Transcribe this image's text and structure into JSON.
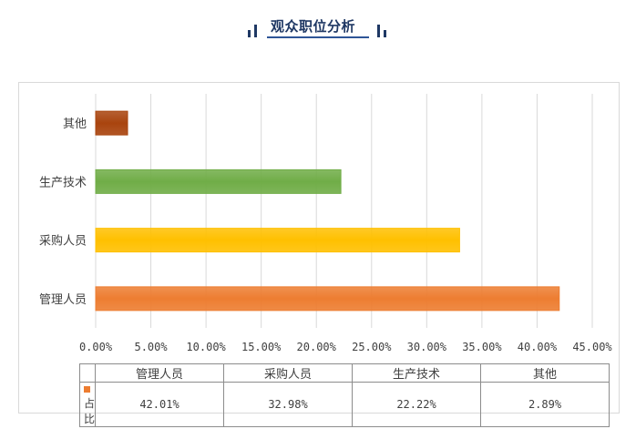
{
  "page": {
    "title": "观众职位分析"
  },
  "chart_data": {
    "type": "bar",
    "orientation": "horizontal",
    "title": "观众职位分析",
    "categories": [
      "管理人员",
      "采购人员",
      "生产技术",
      "其他"
    ],
    "series": [
      {
        "name": "占比",
        "values": [
          42.01,
          32.98,
          22.22,
          2.89
        ]
      }
    ],
    "value_labels": [
      "42.01%",
      "32.98%",
      "22.22%",
      "2.89%"
    ],
    "bar_colors": [
      "#ed7d31",
      "#ffc000",
      "#70ad47",
      "#a9440e"
    ],
    "series_color": "#ed7d31",
    "x_ticks": [
      "0.00%",
      "5.00%",
      "10.00%",
      "15.00%",
      "20.00%",
      "25.00%",
      "30.00%",
      "35.00%",
      "40.00%",
      "45.00%"
    ],
    "xlim": [
      0,
      45
    ],
    "grid": true,
    "data_table": true,
    "legend": "data-table"
  },
  "colors": {
    "title": "#1f3864",
    "gridline": "#d9d9d9"
  }
}
